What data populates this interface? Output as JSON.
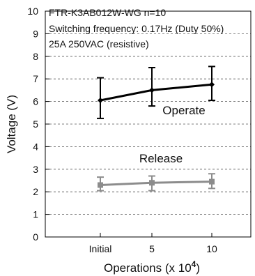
{
  "chart_data": {
    "type": "line",
    "annotations": [
      "FTR-K3AB012W-WG n=10",
      "Switching frequency: 0.17Hz (Duty 50%)",
      "25A 250VAC (resistive)"
    ],
    "xlabel_main": "Operations (x 10",
    "xlabel_exp": "4",
    "xlabel_close": ")",
    "ylabel": "Voltage (V)",
    "categories": [
      "Initial",
      "5",
      "10"
    ],
    "ylim": [
      0,
      10
    ],
    "yticks": [
      "0",
      "1",
      "2",
      "3",
      "4",
      "5",
      "6",
      "7",
      "8",
      "9",
      "10"
    ],
    "grid": "horizontal-dashed",
    "series": [
      {
        "name": "Operate",
        "color": "#000000",
        "marker": "diamond",
        "values": [
          6.05,
          6.5,
          6.75
        ],
        "max": [
          7.05,
          7.5,
          7.55
        ],
        "min": [
          5.25,
          5.8,
          6.05
        ]
      },
      {
        "name": "Release",
        "color": "#8c8c8c",
        "marker": "square",
        "values": [
          2.3,
          2.4,
          2.45
        ],
        "max": [
          2.65,
          2.7,
          2.8
        ],
        "min": [
          2.05,
          2.05,
          2.15
        ]
      }
    ]
  }
}
